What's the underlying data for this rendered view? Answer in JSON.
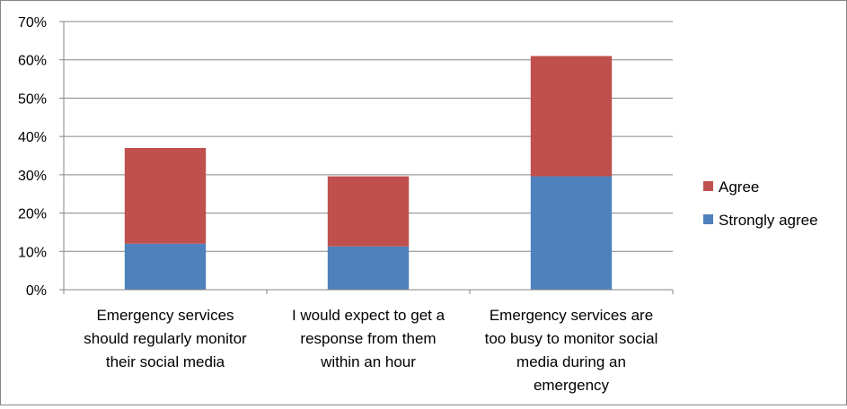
{
  "chart_data": {
    "type": "bar",
    "stacked": true,
    "categories": [
      [
        "Emergency services",
        "should regularly monitor",
        "their social media"
      ],
      [
        "I would expect to get a",
        "response from them",
        "within an hour"
      ],
      [
        "Emergency services are",
        "too busy to monitor social",
        "media during an",
        "emergency"
      ]
    ],
    "series": [
      {
        "name": "Strongly agree",
        "color": "#4F81BD",
        "values": [
          12,
          11.3,
          29.6
        ]
      },
      {
        "name": "Agree",
        "color": "#C0504D",
        "values": [
          25,
          18.3,
          31.4
        ]
      }
    ],
    "ylim": [
      0,
      70
    ],
    "yticks": [
      0,
      10,
      20,
      30,
      40,
      50,
      60,
      70
    ],
    "ytick_format": "percent",
    "grid": true,
    "legend_position": "right"
  }
}
